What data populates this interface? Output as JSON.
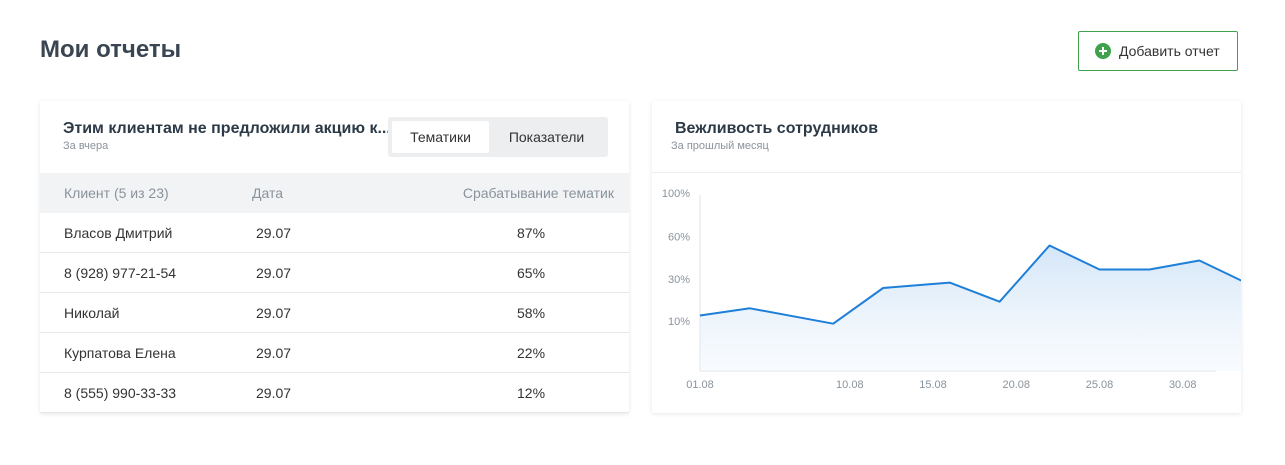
{
  "header": {
    "title": "Мои отчеты",
    "add_button_label": "Добавить отчет"
  },
  "left_card": {
    "title": "Этим клиентам не предложили акцию к...",
    "subtitle": "За вчера",
    "tabs": [
      {
        "label": "Тематики",
        "active": true
      },
      {
        "label": "Показатели",
        "active": false
      }
    ],
    "columns": [
      "Клиент (5 из 23)",
      "Дата",
      "Срабатывание тематик"
    ],
    "rows": [
      {
        "client": "Власов Дмитрий",
        "date": "29.07",
        "rate": "87%"
      },
      {
        "client": "8 (928) 977-21-54",
        "date": "29.07",
        "rate": "65%"
      },
      {
        "client": "Николай",
        "date": "29.07",
        "rate": "58%"
      },
      {
        "client": "Курпатова Елена",
        "date": "29.07",
        "rate": "22%"
      },
      {
        "client": "8 (555) 990-33-33",
        "date": "29.07",
        "rate": "12%"
      }
    ]
  },
  "right_card": {
    "title": "Вежливость сотрудников",
    "subtitle": "За прошлый месяц"
  },
  "colors": {
    "accent_green": "#3fa34d",
    "line_blue": "#1e7fd8"
  },
  "chart_data": {
    "type": "area",
    "title": "Вежливость сотрудников",
    "subtitle": "За прошлый месяц",
    "x_tick_labels": [
      "01.08",
      "10.08",
      "15.08",
      "20.08",
      "25.08",
      "30.08"
    ],
    "y_tick_labels": [
      "100%",
      "60%",
      "30%",
      "10%"
    ],
    "series": [
      {
        "values": [
          {
            "x": "01.08",
            "y": 12
          },
          {
            "x": "04.08",
            "y": 15
          },
          {
            "x": "09.08",
            "y": 9
          },
          {
            "x": "12.08",
            "y": 25
          },
          {
            "x": "16.08",
            "y": 28
          },
          {
            "x": "19.08",
            "y": 18
          },
          {
            "x": "22.08",
            "y": 53
          },
          {
            "x": "25.08",
            "y": 36
          },
          {
            "x": "28.08",
            "y": 36
          },
          {
            "x": "31.08",
            "y": 42
          },
          {
            "x": "03.09",
            "y": 27
          }
        ]
      }
    ],
    "grid": false
  }
}
